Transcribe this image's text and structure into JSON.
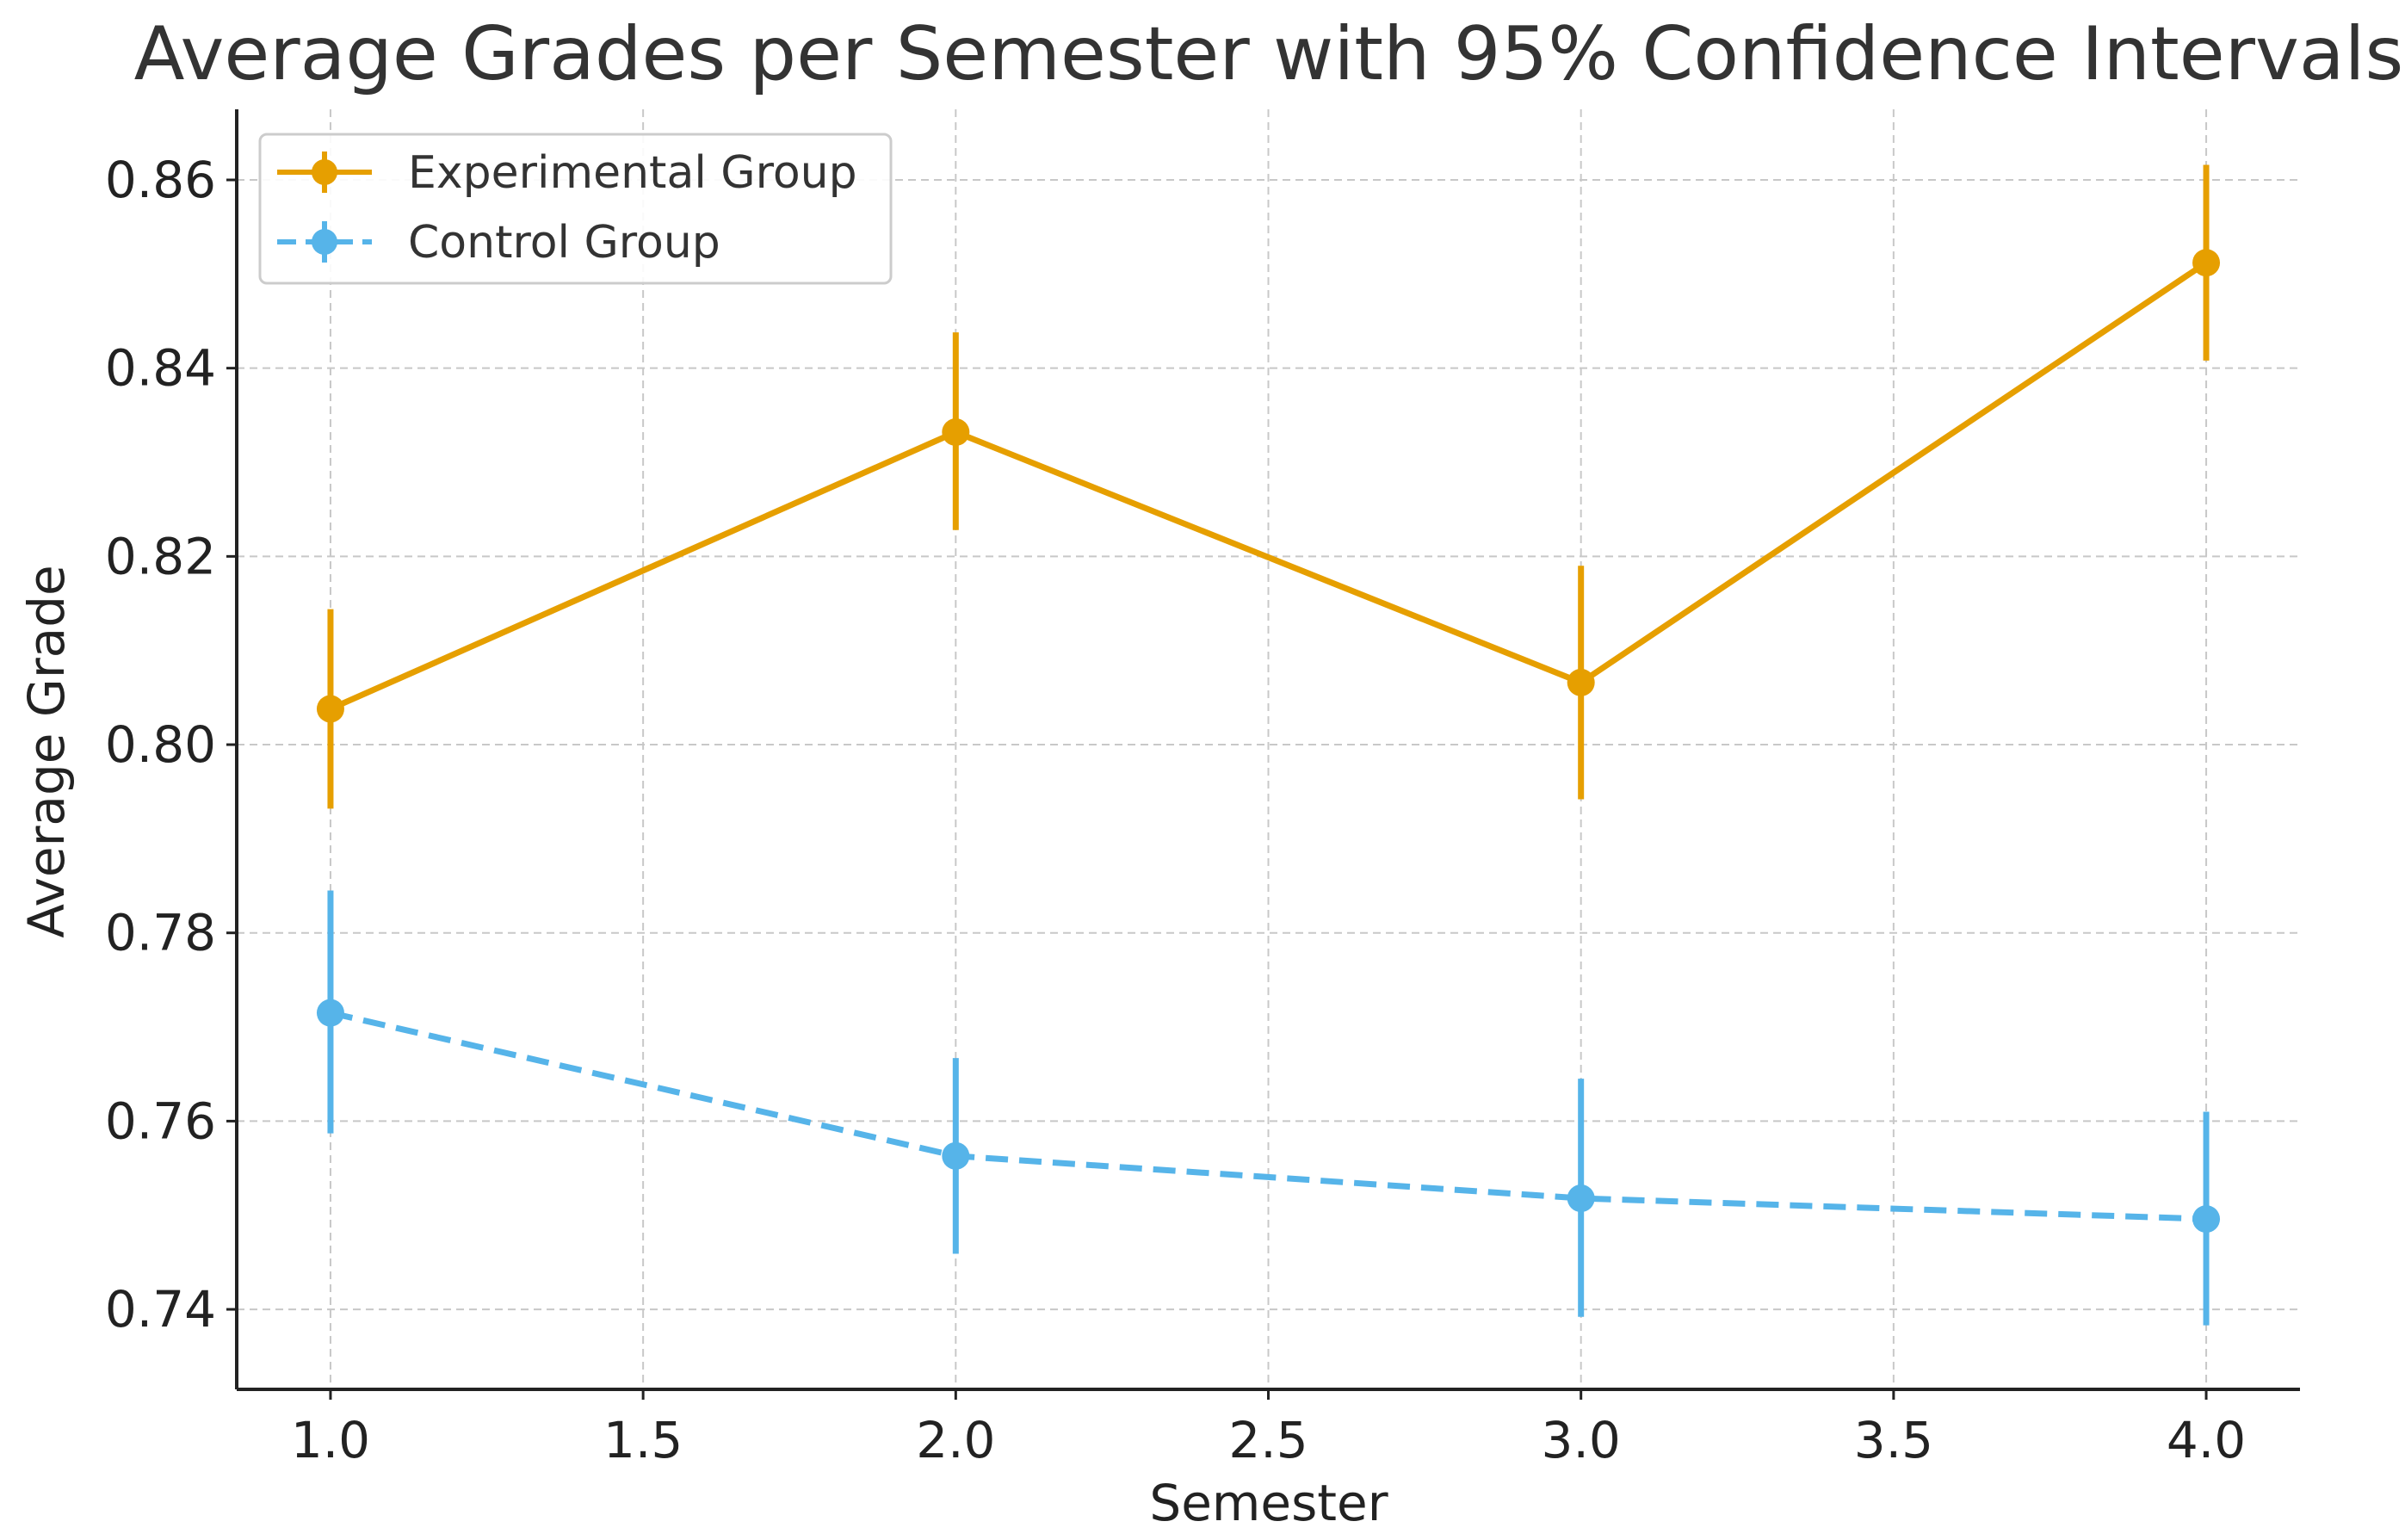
{
  "chart_data": {
    "type": "line",
    "title": "Average Grades per Semester with 95% Confidence Intervals",
    "xlabel": "Semester",
    "ylabel": "Average Grade",
    "xlim": [
      0.85,
      4.15
    ],
    "ylim": [
      0.7315,
      0.8675
    ],
    "x_ticks": [
      "1.0",
      "1.5",
      "2.0",
      "2.5",
      "3.0",
      "3.5",
      "4.0"
    ],
    "y_ticks": [
      "0.74",
      "0.76",
      "0.78",
      "0.80",
      "0.82",
      "0.84",
      "0.86"
    ],
    "grid": true,
    "legend_position": "top-left",
    "series": [
      {
        "name": "Experimental Group",
        "color": "#E69F00",
        "line_style": "solid",
        "x": [
          1.0,
          2.0,
          3.0,
          4.0
        ],
        "values": [
          0.8038,
          0.8332,
          0.8066,
          0.8512
        ],
        "ci_lower": [
          0.7932,
          0.8228,
          0.7942,
          0.8408
        ],
        "ci_upper": [
          0.8144,
          0.8438,
          0.819,
          0.8616
        ]
      },
      {
        "name": "Control Group",
        "color": "#56B4E9",
        "line_style": "dashed",
        "x": [
          1.0,
          2.0,
          3.0,
          4.0
        ],
        "values": [
          0.7715,
          0.7563,
          0.7518,
          0.7496
        ],
        "ci_lower": [
          0.7587,
          0.7459,
          0.7392,
          0.7383
        ],
        "ci_upper": [
          0.7845,
          0.7667,
          0.7645,
          0.761
        ]
      }
    ]
  }
}
